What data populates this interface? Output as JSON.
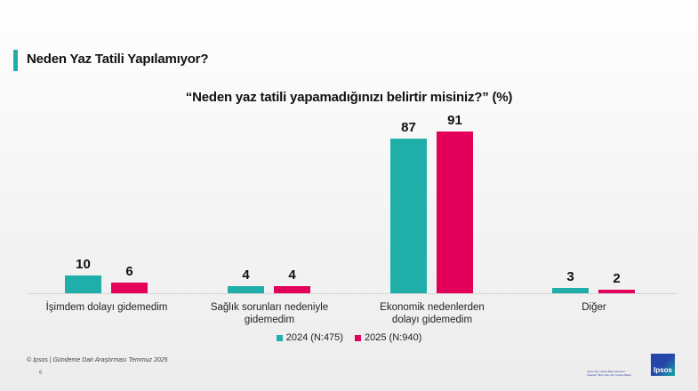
{
  "header": {
    "title": "Neden Yaz Tatili Yapılamıyor?"
  },
  "colors": {
    "series_2024": "#20aeaa",
    "series_2025": "#e2005a",
    "accent": "#20aeaa"
  },
  "chart_data": {
    "type": "bar",
    "title": "“Neden yaz tatili yapamadığınızı belirtir misiniz?” (%)",
    "categories": [
      "İşimdem dolayı gidemedim",
      "Sağlık sorunları nedeniyle gidemedim",
      "Ekonomik nedenlerden dolayı gidemedim",
      "Diğer"
    ],
    "series": [
      {
        "name": "2024 (N:475)",
        "values": [
          10,
          4,
          87,
          3
        ]
      },
      {
        "name": "2025 (N:940)",
        "values": [
          6,
          4,
          91,
          2
        ]
      }
    ],
    "xlabel": "",
    "ylabel": "",
    "ylim": [
      0,
      100
    ],
    "grid": false,
    "legend_position": "bottom",
    "labels": {
      "c0s0": "10",
      "c0s1": "6",
      "c1s0": "4",
      "c1s1": "4",
      "c2s0": "87",
      "c2s1": "91",
      "c3s0": "3",
      "c3s1": "2"
    }
  },
  "legend": {
    "l2024": "2024 (N:475)",
    "l2025": "2025 (N:940)"
  },
  "footer": {
    "source": "© Ipsos | Gündeme Dair Araştırması Temmuz 2025",
    "page": "6",
    "logo": "Ipsos",
    "tagline": "Ipsos Kişi | Hayat Bilgi Gündemi İnsanlar | Bize Pek çok Yönden Bakın"
  }
}
